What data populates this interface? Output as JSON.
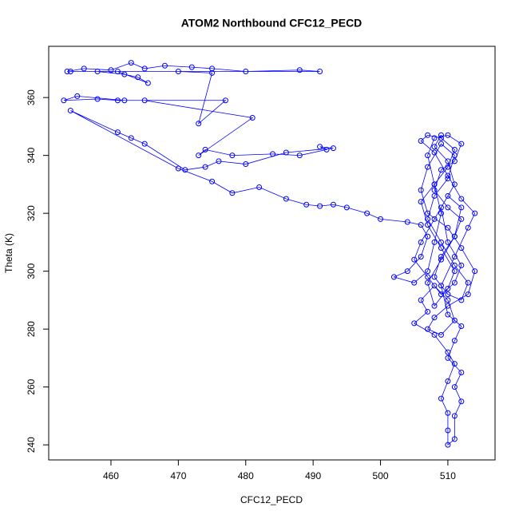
{
  "chart_data": {
    "type": "line",
    "title": "ATOM2 Northbound CFC12_PECD",
    "x_label": "CFC12_PECD",
    "y_label": "Theta (K)",
    "color": "#0000ff",
    "xlim": [
      450.76,
      517.0
    ],
    "ylim": [
      234.8,
      377.7
    ],
    "xticks": [
      460,
      470,
      480,
      490,
      500,
      510
    ],
    "yticks": [
      240,
      260,
      280,
      300,
      320,
      340,
      360
    ],
    "x": [
      453.5,
      456,
      460,
      463,
      465,
      468,
      472,
      475,
      480,
      488,
      491,
      454,
      458,
      462,
      464,
      465.5,
      461,
      470,
      475,
      473,
      477,
      461,
      458,
      453,
      455,
      462,
      465,
      481,
      473,
      474,
      478,
      484,
      488,
      492,
      491,
      493,
      486,
      480,
      476,
      474,
      471,
      465,
      463,
      461,
      454,
      470,
      475,
      478,
      482,
      486,
      489,
      491,
      493,
      495,
      498,
      500,
      504,
      506,
      507,
      506,
      504,
      502,
      505,
      507,
      508,
      509,
      508,
      507,
      508,
      510,
      512,
      511,
      509,
      508,
      510,
      512,
      511,
      509,
      508,
      510,
      512,
      513,
      511,
      509,
      507,
      508,
      510,
      511,
      509,
      507,
      506,
      507,
      510,
      512,
      514,
      513,
      510,
      508,
      507,
      509,
      511,
      510,
      508,
      506,
      507,
      505,
      508,
      510,
      511,
      510,
      509,
      510,
      510,
      510,
      511,
      511,
      512,
      511,
      512,
      510,
      511,
      512,
      510,
      509,
      511,
      513,
      514,
      512,
      510,
      508,
      506,
      507,
      509,
      511,
      510,
      508,
      506,
      507,
      509,
      511,
      510,
      508,
      507,
      509,
      511,
      512,
      510,
      508,
      506,
      505,
      507,
      509,
      511,
      512,
      510,
      509,
      511,
      510,
      508,
      509
    ],
    "values": [
      369,
      370,
      369.5,
      372,
      370,
      371,
      370.5,
      370,
      369,
      369.5,
      369,
      369,
      369,
      368,
      367,
      365,
      369,
      369,
      368.5,
      351,
      359,
      359,
      359.5,
      359,
      360.5,
      359,
      359,
      353,
      340,
      342,
      340,
      340.5,
      340,
      342,
      343,
      342.5,
      341,
      337,
      338,
      336,
      335,
      344,
      346,
      348,
      355.5,
      335.5,
      331,
      327,
      329,
      325,
      323,
      322.5,
      323,
      322,
      320,
      318,
      317,
      316,
      312,
      305,
      300,
      298,
      296,
      300,
      310,
      320,
      330,
      340,
      346,
      347,
      344,
      338,
      335,
      328,
      322,
      318,
      312,
      305,
      298,
      292,
      290,
      296,
      302,
      310,
      318,
      326,
      332,
      340,
      344,
      336,
      328,
      320,
      315,
      308,
      300,
      292,
      288,
      284,
      280,
      278,
      283,
      290,
      295,
      290,
      286,
      282,
      278,
      272,
      268,
      262,
      256,
      251,
      245,
      240,
      242,
      250,
      255,
      260,
      265,
      270,
      276,
      281,
      285,
      295,
      305,
      315,
      320,
      325,
      333,
      341,
      345,
      347,
      346,
      342,
      336,
      330,
      324,
      316,
      308,
      300,
      294,
      288,
      296,
      304,
      312,
      322,
      326,
      318,
      310,
      304,
      298,
      292,
      296,
      302,
      310,
      322,
      330,
      338,
      343,
      347
    ]
  }
}
